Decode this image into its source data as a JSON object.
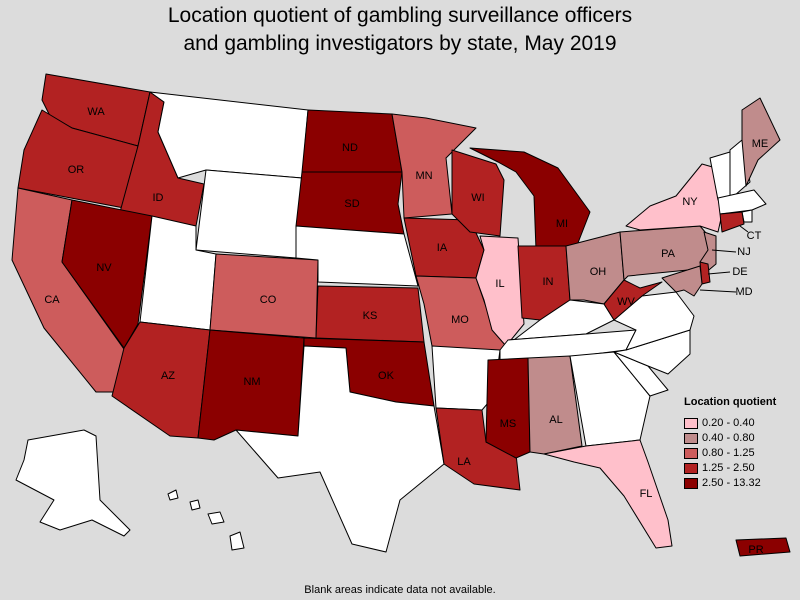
{
  "title": {
    "line1": "Location quotient of gambling surveillance officers",
    "line2": "and gambling investigators by state, May 2019"
  },
  "legend": {
    "title": "Location quotient",
    "items": [
      {
        "label": "0.20 - 0.40",
        "color": "#ffc0cb"
      },
      {
        "label": "0.40 - 0.80",
        "color": "#c08c8c"
      },
      {
        "label": "0.80 - 1.25",
        "color": "#cd5c5c"
      },
      {
        "label": "1.25 - 2.50",
        "color": "#b22222"
      },
      {
        "label": "2.50 - 13.32",
        "color": "#8b0000"
      }
    ]
  },
  "no_data_color": "#ffffff",
  "footnote": "Blank areas indicate data not available.",
  "state_classes": {
    "WA": 3,
    "OR": 3,
    "ID": 3,
    "NV": 4,
    "CA": 2,
    "AZ": 3,
    "NM": 4,
    "CO": 2,
    "ND": 4,
    "SD": 4,
    "KS": 3,
    "OK": 4,
    "MN": 2,
    "IA": 3,
    "MO": 2,
    "WI": 3,
    "IL": 0,
    "MI": 4,
    "IN": 3,
    "OH": 1,
    "WV": 3,
    "PA": 1,
    "NY": 0,
    "ME": 1,
    "CT": 3,
    "NJ": 1,
    "DE": 3,
    "MD": 1,
    "LA": 3,
    "MS": 4,
    "AL": 1,
    "FL": 0,
    "PR": 4
  },
  "state_labels": {
    "WA": "WA",
    "OR": "OR",
    "ID": "ID",
    "NV": "NV",
    "CA": "CA",
    "AZ": "AZ",
    "NM": "NM",
    "CO": "CO",
    "ND": "ND",
    "SD": "SD",
    "KS": "KS",
    "OK": "OK",
    "MN": "MN",
    "IA": "IA",
    "MO": "MO",
    "WI": "WI",
    "IL": "IL",
    "MI": "MI",
    "IN": "IN",
    "OH": "OH",
    "WV": "WV",
    "PA": "PA",
    "NY": "NY",
    "ME": "ME",
    "LA": "LA",
    "MS": "MS",
    "AL": "AL",
    "FL": "FL",
    "PR": "PR",
    "CT": "CT",
    "NJ": "NJ",
    "DE": "DE",
    "MD": "MD"
  }
}
